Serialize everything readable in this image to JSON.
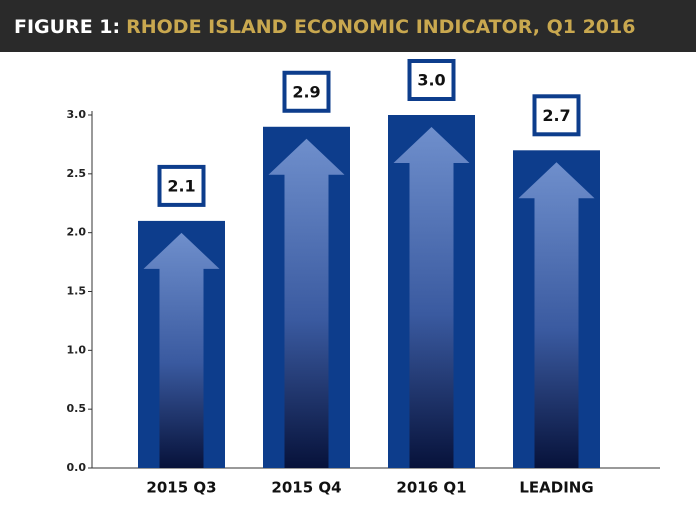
{
  "chart_data": {
    "type": "bar",
    "figure_label": "FIGURE 1:",
    "title": "RHODE ISLAND ECONOMIC INDICATOR, Q1 2016",
    "categories": [
      "2015 Q3",
      "2015 Q4",
      "2016 Q1",
      "LEADING"
    ],
    "values": [
      2.1,
      2.9,
      3.0,
      2.7
    ],
    "value_labels": [
      "2.1",
      "2.9",
      "3.0",
      "2.7"
    ],
    "color": "#0d3d8c",
    "ylim": [
      0,
      3.0
    ],
    "yticks": [
      {
        "value": 0,
        "label": "0.0"
      },
      {
        "value": 0.5,
        "label": "0.5"
      },
      {
        "value": 1.0,
        "label": "1.0"
      },
      {
        "value": 1.5,
        "label": "1.5"
      },
      {
        "value": 2.0,
        "label": "2.0"
      },
      {
        "value": 2.5,
        "label": "2.5"
      },
      {
        "value": 3.0,
        "label": "3.0"
      }
    ]
  }
}
